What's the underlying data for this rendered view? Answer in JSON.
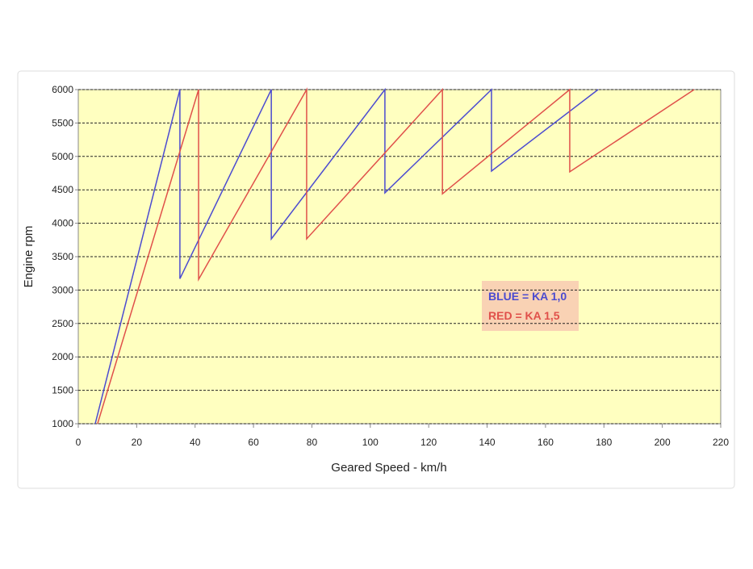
{
  "chart_data": {
    "type": "line",
    "xlabel": "Geared Speed - km/h",
    "ylabel": "Engine rpm",
    "xlim": [
      0,
      220
    ],
    "xticks": [
      0,
      20,
      40,
      60,
      80,
      100,
      120,
      140,
      160,
      180,
      200,
      220
    ],
    "ylim": [
      1000,
      6000
    ],
    "yticks": [
      1000,
      1500,
      2000,
      2500,
      3000,
      3500,
      4000,
      4500,
      5000,
      5500,
      6000
    ],
    "grid": true,
    "series": [
      {
        "name": "BLUE = KA 1,0",
        "color": "#4b4bd0",
        "x": [
          5.8,
          34.8,
          34.8,
          66.1,
          66.1,
          105.0,
          105.0,
          141.5,
          141.5,
          178.0
        ],
        "values": [
          1000,
          6000,
          3170,
          6000,
          3766,
          6000,
          4454,
          6000,
          4780,
          6000
        ]
      },
      {
        "name": "RED = KA 1,5",
        "color": "#e0504a",
        "x": [
          6.6,
          41.2,
          41.2,
          78.2,
          78.2,
          124.7,
          124.7,
          168.3,
          168.3,
          210.9
        ],
        "values": [
          1000,
          6000,
          3160,
          6000,
          3766,
          6000,
          4440,
          6000,
          4770,
          6000
        ]
      }
    ]
  }
}
